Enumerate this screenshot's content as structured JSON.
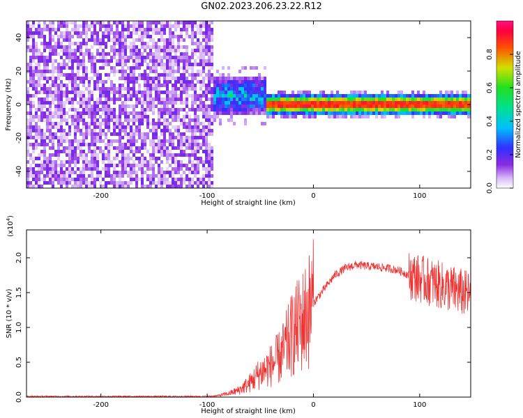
{
  "title": "GN02.2023.206.23.22.R12",
  "colors": {
    "snr_line": "#ee3333",
    "axes": "#000000"
  },
  "chart_data": [
    {
      "type": "heatmap",
      "title": "GN02.2023.206.23.22.R12",
      "xlabel": "Height of straight line (km)",
      "ylabel": "Frequency (Hz)",
      "xlim": [
        -270,
        148
      ],
      "ylim": [
        -50,
        50
      ],
      "xticks": [
        -200,
        -100,
        0,
        100
      ],
      "yticks": [
        -40,
        -20,
        0,
        20,
        40
      ],
      "colorbar": {
        "label": "Normalized spectral amplitude",
        "range": [
          0,
          1
        ],
        "ticks": [
          "0.0",
          "0.2",
          "0.4",
          "0.6",
          "0.8"
        ],
        "colormap": "white-purple-blue-cyan-green-yellow-red-magenta"
      },
      "regions": [
        {
          "x_range": [
            -270,
            -95
          ],
          "f_range": [
            -50,
            50
          ],
          "amplitude": "0.0-0.2 noise"
        },
        {
          "x_range": [
            -95,
            -45
          ],
          "f_range": [
            -5,
            15
          ],
          "amplitude": "0.1-0.5"
        },
        {
          "x_range": [
            -45,
            148
          ],
          "f_center": 0,
          "f_halfwidth": 3,
          "amplitude": "0.5-0.9"
        }
      ]
    },
    {
      "type": "line",
      "xlabel": "Height of straight line (km)",
      "ylabel": "SNR (10 * v/v)",
      "y_multiplier": "(x10",
      "y_multiplier_exp": "4",
      "multiplier_close": ")",
      "xlim": [
        -270,
        148
      ],
      "ylim": [
        0,
        2.4
      ],
      "xticks": [
        -200,
        -100,
        0,
        100
      ],
      "yticks": [
        "0.0",
        "0.5",
        "1.0",
        "1.5",
        "2.0"
      ],
      "series": [
        {
          "x": [
            -270,
            -200,
            -100,
            -90,
            -80,
            -70,
            -60,
            -50,
            -40,
            -30,
            -20,
            -10,
            0,
            10,
            20,
            30,
            40,
            50,
            60,
            70,
            80,
            90,
            100,
            110,
            120,
            130,
            140,
            148
          ],
          "values": [
            0.01,
            0.01,
            0.01,
            0.02,
            0.05,
            0.1,
            0.2,
            0.35,
            0.45,
            0.6,
            0.9,
            1.1,
            1.35,
            1.55,
            1.75,
            1.85,
            1.9,
            1.88,
            1.87,
            1.85,
            1.82,
            1.75,
            1.7,
            1.65,
            1.6,
            1.55,
            1.5,
            1.45
          ]
        }
      ]
    }
  ]
}
